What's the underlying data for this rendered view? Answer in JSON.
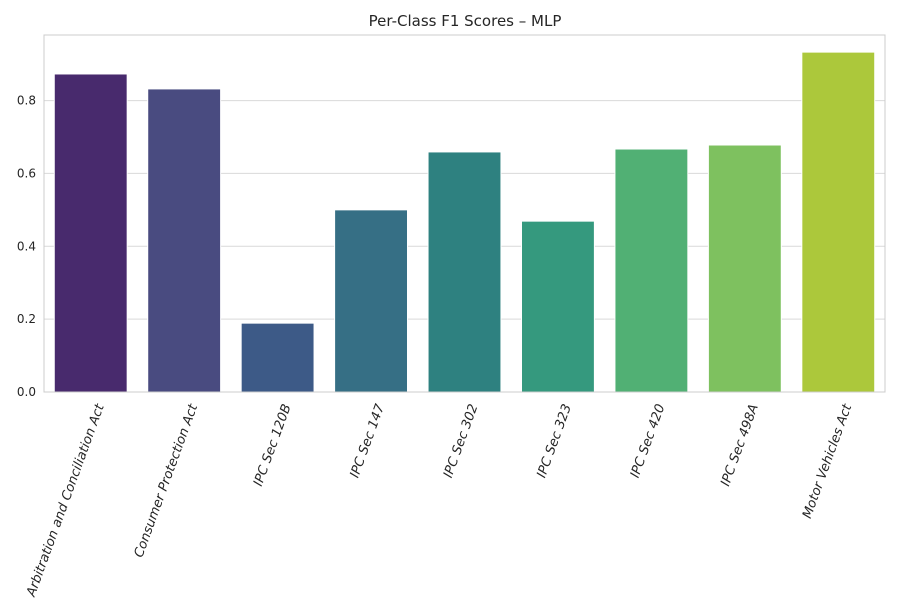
{
  "chart_data": {
    "type": "bar",
    "title": "Per-Class F1 Scores – MLP",
    "xlabel": "",
    "ylabel": "",
    "categories": [
      "Arbitration and Conciliation Act",
      "Consumer Protection Act",
      "IPC Sec 120B",
      "IPC Sec 147",
      "IPC Sec 302",
      "IPC Sec 323",
      "IPC Sec 420",
      "IPC Sec 498A",
      "Motor Vehicles Act"
    ],
    "values": [
      0.873,
      0.832,
      0.189,
      0.5,
      0.659,
      0.469,
      0.667,
      0.678,
      0.933
    ],
    "colors": [
      "#482a6d",
      "#494b80",
      "#3d5a87",
      "#366f85",
      "#2e8180",
      "#35997e",
      "#51b074",
      "#7ec15f",
      "#acc83b"
    ],
    "ylim": [
      0,
      0.98
    ],
    "yticks": [
      0.0,
      0.2,
      0.4,
      0.6,
      0.8
    ],
    "ytick_labels": [
      "0.0",
      "0.2",
      "0.4",
      "0.6",
      "0.8"
    ],
    "grid": true,
    "xtick_rotation": 70
  }
}
